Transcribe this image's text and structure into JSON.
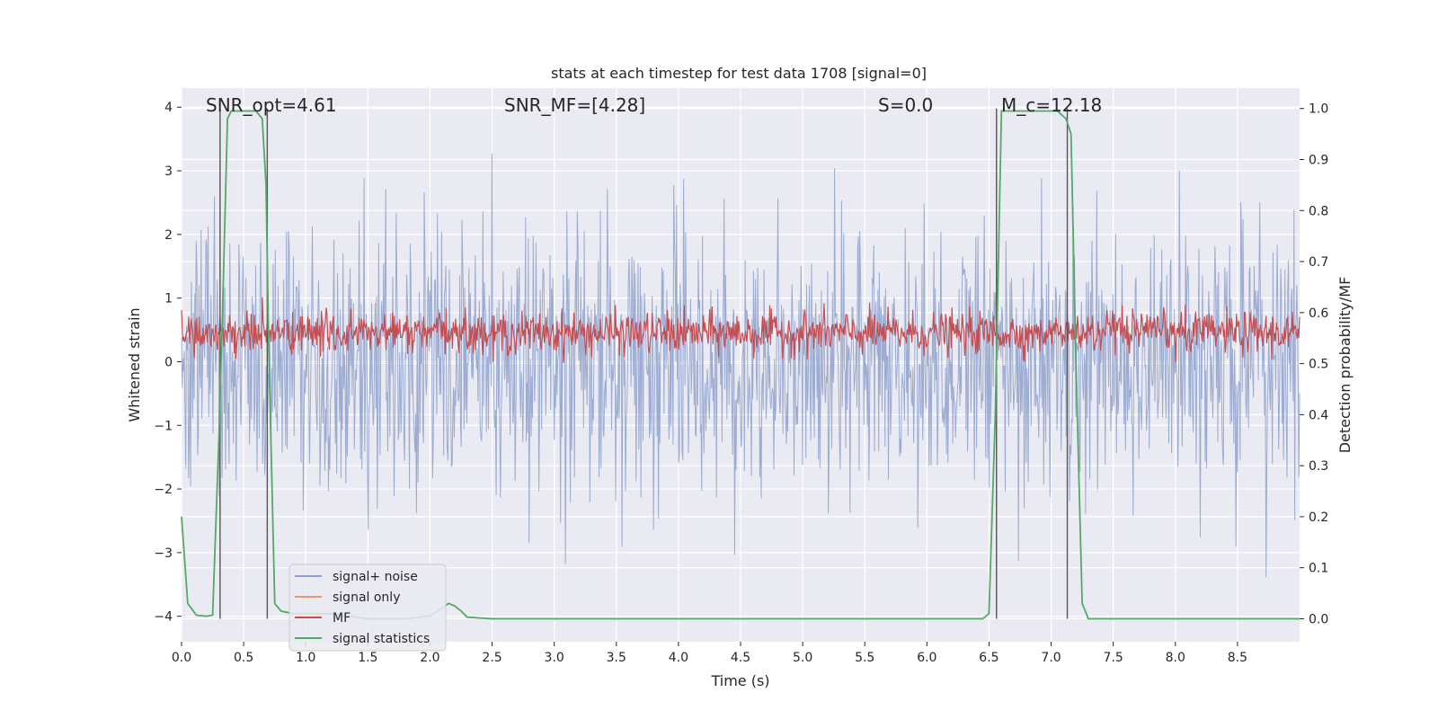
{
  "chart_data": {
    "type": "line",
    "title": "stats at each timestep for test data 1708 [signal=0]",
    "xlabel": "Time (s)",
    "ylabel_left": "Whitened strain",
    "ylabel_right": "Detection probability/MF",
    "xlim": [
      0.0,
      9.0
    ],
    "ylim_left": [
      -4.4,
      4.3
    ],
    "ylim_right": [
      -0.045,
      1.04
    ],
    "x_ticks": [
      "0.0",
      "0.5",
      "1.0",
      "1.5",
      "2.0",
      "2.5",
      "3.0",
      "3.5",
      "4.0",
      "4.5",
      "5.0",
      "5.5",
      "6.0",
      "6.5",
      "7.0",
      "7.5",
      "8.0",
      "8.5"
    ],
    "y_left_ticks": [
      "4",
      "3",
      "2",
      "1",
      "0",
      "−1",
      "−2",
      "−3",
      "−4"
    ],
    "y_right_ticks": [
      "1.0",
      "0.9",
      "0.8",
      "0.7",
      "0.6",
      "0.5",
      "0.4",
      "0.3",
      "0.2",
      "0.1",
      "0.0"
    ],
    "grid": true,
    "legend_position": "lower-left",
    "annotations": {
      "snr_opt": "SNR_opt=4.61",
      "snr_mf": "SNR_MF=[4.28]",
      "s": "S=0.0",
      "mc": "M_c=12.18"
    },
    "series": [
      {
        "name": "signal+ noise",
        "color": "#8da0cb",
        "description_values": {
          "amplitude_range": [
            -4.0,
            3.6
          ]
        }
      },
      {
        "name": "signal only",
        "color": "#e9967a"
      },
      {
        "name": "MF",
        "color": "#c44e52",
        "axis": "right",
        "range": [
          0.5,
          0.62
        ]
      },
      {
        "name": "signal statistics",
        "color": "#55a868",
        "axis": "right",
        "x": [
          0.0,
          0.05,
          0.12,
          0.2,
          0.25,
          0.3,
          0.33,
          0.37,
          0.4,
          0.5,
          0.6,
          0.65,
          0.68,
          0.7,
          0.75,
          0.8,
          0.9,
          1.0,
          1.1,
          1.2,
          1.5,
          1.8,
          2.0,
          2.15,
          2.2,
          2.25,
          2.3,
          2.5,
          3.0,
          4.0,
          5.0,
          6.0,
          6.45,
          6.5,
          6.55,
          6.6,
          6.7,
          6.9,
          7.05,
          7.12,
          7.16,
          7.2,
          7.25,
          7.3,
          7.5,
          8.0,
          9.0
        ],
        "y": [
          0.2,
          0.03,
          0.007,
          0.005,
          0.007,
          0.35,
          0.6,
          0.98,
          0.995,
          0.995,
          0.995,
          0.98,
          0.85,
          0.55,
          0.03,
          0.015,
          0.01,
          0.01,
          0.01,
          0.01,
          0.0,
          0.0,
          0.005,
          0.03,
          0.025,
          0.015,
          0.003,
          0.0,
          0.0,
          0.0,
          0.0,
          0.0,
          0.0,
          0.01,
          0.4,
          0.995,
          0.995,
          0.995,
          0.995,
          0.98,
          0.95,
          0.5,
          0.03,
          0.0,
          0.0,
          0.0,
          0.0
        ]
      }
    ],
    "vertical_lines_x": [
      0.31,
      0.69,
      6.56,
      7.13
    ],
    "legend_labels": [
      "signal+ noise",
      "signal only",
      "MF",
      "signal statistics"
    ]
  }
}
